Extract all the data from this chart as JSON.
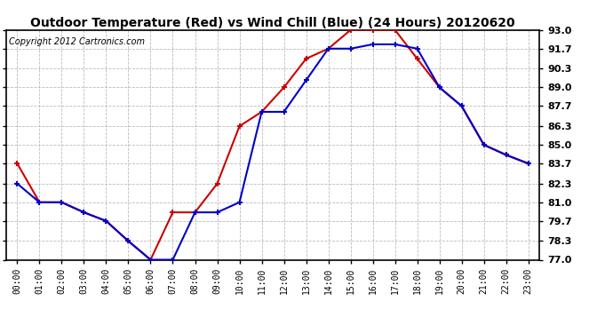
{
  "title": "Outdoor Temperature (Red) vs Wind Chill (Blue) (24 Hours) 20120620",
  "copyright": "Copyright 2012 Cartronics.com",
  "hours": [
    0,
    1,
    2,
    3,
    4,
    5,
    6,
    7,
    8,
    9,
    10,
    11,
    12,
    13,
    14,
    15,
    16,
    17,
    18,
    19,
    20,
    21,
    22,
    23
  ],
  "hour_labels": [
    "00:00",
    "01:00",
    "02:00",
    "03:00",
    "04:00",
    "05:00",
    "06:00",
    "07:00",
    "08:00",
    "09:00",
    "10:00",
    "11:00",
    "12:00",
    "13:00",
    "14:00",
    "15:00",
    "16:00",
    "17:00",
    "18:00",
    "19:00",
    "20:00",
    "21:00",
    "22:00",
    "23:00"
  ],
  "temp_red": [
    83.7,
    81.0,
    81.0,
    80.3,
    79.7,
    78.3,
    77.0,
    80.3,
    80.3,
    82.3,
    86.3,
    87.3,
    89.0,
    91.0,
    91.7,
    93.0,
    93.0,
    93.0,
    91.0,
    89.0,
    87.7,
    85.0,
    84.3,
    83.7
  ],
  "temp_blue": [
    82.3,
    81.0,
    81.0,
    80.3,
    79.7,
    78.3,
    77.0,
    77.0,
    80.3,
    80.3,
    81.0,
    87.3,
    87.3,
    89.5,
    91.7,
    91.7,
    92.0,
    92.0,
    91.7,
    89.0,
    87.7,
    85.0,
    84.3,
    83.7
  ],
  "ylim": [
    77.0,
    93.0
  ],
  "yticks": [
    77.0,
    78.3,
    79.7,
    81.0,
    82.3,
    83.7,
    85.0,
    86.3,
    87.7,
    89.0,
    90.3,
    91.7,
    93.0
  ],
  "red_color": "#cc0000",
  "blue_color": "#0000cc",
  "bg_color": "#ffffff",
  "grid_color": "#bbbbbb",
  "title_fontsize": 10,
  "copyright_fontsize": 7
}
